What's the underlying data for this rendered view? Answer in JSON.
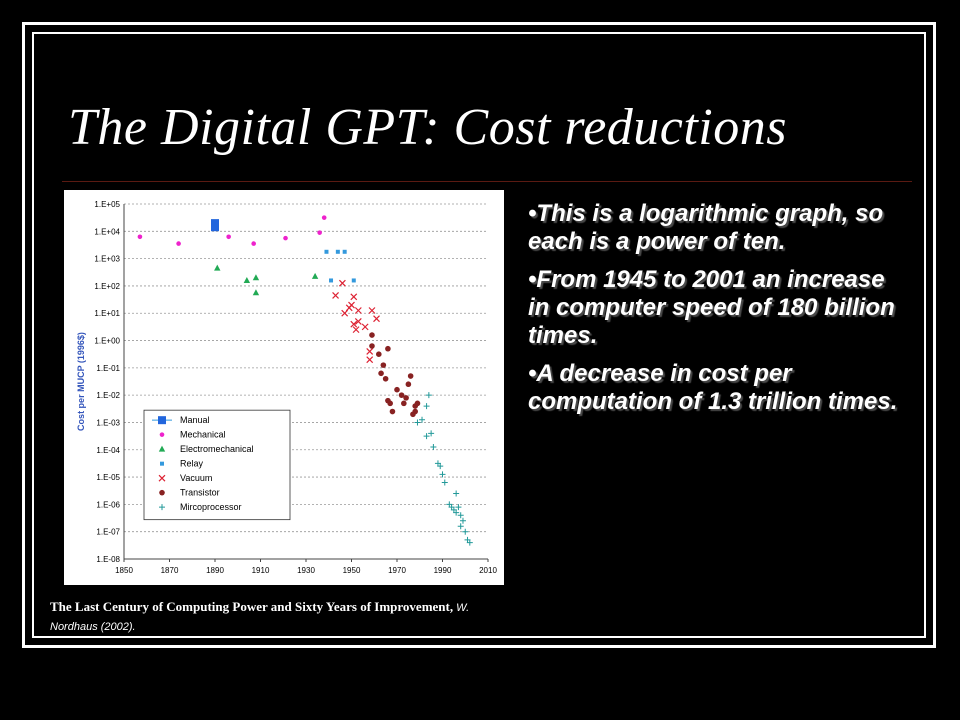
{
  "slide": {
    "title": "The Digital GPT: Cost reductions",
    "bullets": [
      "•This is a logarithmic graph, so each is a power of ten.",
      "•From 1945 to 2001 an increase in computer speed of 180 billion times.",
      "•A decrease in cost per computation of 1.3 trillion times."
    ],
    "caption_main": "The Last Century of Computing Power and Sixty Years of Improvement,",
    "caption_author": " W. Nordhaus (2002)."
  },
  "colors": {
    "background": "#000000",
    "text": "#ffffff",
    "axis_label": "#3355bb"
  },
  "chart_data": {
    "type": "scatter",
    "ylabel": "Cost per MUCP (1996$)",
    "yscale": "log",
    "xlim": [
      1850,
      2010
    ],
    "ylim_exp": [
      -8,
      5
    ],
    "x_ticks": [
      "1850",
      "1870",
      "1890",
      "1910",
      "1930",
      "1950",
      "1970",
      "1990",
      "2010"
    ],
    "y_ticks": [
      "1.E+05",
      "1.E+04",
      "1.E+03",
      "1.E+02",
      "1.E+01",
      "1.E+00",
      "1.E-01",
      "1.E-02",
      "1.E-03",
      "1.E-04",
      "1.E-05",
      "1.E-06",
      "1.E-07",
      "1.E-08"
    ],
    "legend_position": "bottom-left",
    "grid": true,
    "series": [
      {
        "name": "Manual",
        "marker": "square",
        "color": "#2266dd",
        "points": [
          [
            1890,
            4.3
          ],
          [
            1890,
            4.15
          ]
        ]
      },
      {
        "name": "Mechanical",
        "marker": "circle",
        "color": "#ee22cc",
        "points": [
          [
            1857,
            3.8
          ],
          [
            1874,
            3.55
          ],
          [
            1896,
            3.8
          ],
          [
            1907,
            3.55
          ],
          [
            1921,
            3.75
          ],
          [
            1936,
            3.95
          ],
          [
            1938,
            4.5
          ]
        ]
      },
      {
        "name": "Electromechanical",
        "marker": "triangle",
        "color": "#22aa55",
        "points": [
          [
            1891,
            2.65
          ],
          [
            1904,
            2.2
          ],
          [
            1908,
            2.3
          ],
          [
            1908,
            1.75
          ],
          [
            1934,
            2.35
          ]
        ]
      },
      {
        "name": "Relay",
        "marker": "small-square",
        "color": "#3399dd",
        "points": [
          [
            1939,
            3.25
          ],
          [
            1941,
            2.2
          ],
          [
            1944,
            3.25
          ],
          [
            1947,
            3.25
          ],
          [
            1951,
            2.2
          ]
        ]
      },
      {
        "name": "Vacuum",
        "marker": "x",
        "color": "#dd2233",
        "points": [
          [
            1946,
            2.1
          ],
          [
            1943,
            1.65
          ],
          [
            1947,
            1.0
          ],
          [
            1949,
            1.2
          ],
          [
            1950,
            1.3
          ],
          [
            1951,
            1.6
          ],
          [
            1951,
            0.6
          ],
          [
            1952,
            0.4
          ],
          [
            1953,
            1.1
          ],
          [
            1953,
            0.7
          ],
          [
            1956,
            0.5
          ],
          [
            1958,
            -0.4
          ],
          [
            1958,
            -0.7
          ],
          [
            1959,
            1.1
          ],
          [
            1961,
            0.8
          ]
        ]
      },
      {
        "name": "Transistor",
        "marker": "circle-dark",
        "color": "#882222",
        "points": [
          [
            1959,
            0.2
          ],
          [
            1959,
            -0.2
          ],
          [
            1962,
            -0.5
          ],
          [
            1963,
            -1.2
          ],
          [
            1964,
            -0.9
          ],
          [
            1965,
            -1.4
          ],
          [
            1966,
            -0.3
          ],
          [
            1966,
            -2.2
          ],
          [
            1967,
            -2.3
          ],
          [
            1968,
            -2.6
          ],
          [
            1970,
            -1.8
          ],
          [
            1972,
            -2.0
          ],
          [
            1973,
            -2.3
          ],
          [
            1974,
            -2.1
          ],
          [
            1975,
            -1.6
          ],
          [
            1976,
            -1.3
          ],
          [
            1977,
            -2.7
          ],
          [
            1978,
            -2.4
          ],
          [
            1978,
            -2.6
          ],
          [
            1979,
            -2.3
          ]
        ]
      },
      {
        "name": "Mircoprocessor",
        "marker": "plus",
        "color": "#229999",
        "points": [
          [
            1979,
            -3.0
          ],
          [
            1981,
            -2.9
          ],
          [
            1983,
            -2.4
          ],
          [
            1983,
            -3.5
          ],
          [
            1984,
            -2.0
          ],
          [
            1985,
            -3.4
          ],
          [
            1986,
            -3.9
          ],
          [
            1988,
            -4.5
          ],
          [
            1989,
            -4.6
          ],
          [
            1990,
            -4.9
          ],
          [
            1991,
            -5.2
          ],
          [
            1993,
            -6.0
          ],
          [
            1994,
            -6.1
          ],
          [
            1995,
            -6.2
          ],
          [
            1996,
            -6.3
          ],
          [
            1996,
            -5.6
          ],
          [
            1997,
            -6.1
          ],
          [
            1998,
            -6.4
          ],
          [
            1998,
            -6.8
          ],
          [
            1999,
            -6.6
          ],
          [
            2000,
            -7.0
          ],
          [
            2001,
            -7.3
          ],
          [
            2002,
            -7.4
          ]
        ]
      }
    ]
  }
}
